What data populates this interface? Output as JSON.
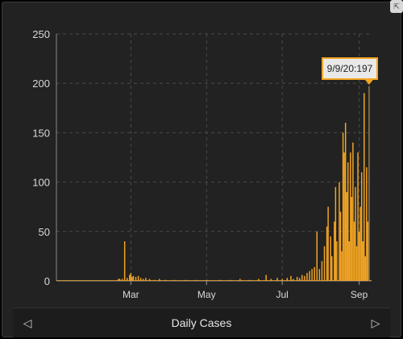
{
  "window": {
    "expand_icon": "expand-icon"
  },
  "footer": {
    "title": "Daily Cases",
    "prev_icon": "triangle-left-icon",
    "next_icon": "triangle-right-icon"
  },
  "tooltip": {
    "text": "9/9/20:197"
  },
  "colors": {
    "bar": "#f5a623",
    "background": "#222222",
    "grid": "#4a4a4a",
    "text": "#d9d9d9"
  },
  "chart_data": {
    "type": "bar",
    "title": "Daily Cases",
    "xlabel": "",
    "ylabel": "",
    "ylim": [
      0,
      250
    ],
    "yticks": [
      0,
      50,
      100,
      150,
      200,
      250
    ],
    "xticks": [
      {
        "label": "Mar",
        "date": "2020-03-01"
      },
      {
        "label": "May",
        "date": "2020-05-01"
      },
      {
        "label": "Jul",
        "date": "2020-07-01"
      },
      {
        "label": "Sep",
        "date": "2020-09-01"
      }
    ],
    "xrange": [
      "2020-01-01",
      "2020-09-11"
    ],
    "grid": true,
    "highlight": {
      "date": "2020-09-09",
      "value": 197
    },
    "series": [
      {
        "values": [
          {
            "date": "2020-02-20",
            "value": 2
          },
          {
            "date": "2020-02-21",
            "value": 2
          },
          {
            "date": "2020-02-23",
            "value": 2
          },
          {
            "date": "2020-02-25",
            "value": 40
          },
          {
            "date": "2020-02-27",
            "value": 3
          },
          {
            "date": "2020-02-29",
            "value": 6
          },
          {
            "date": "2020-03-01",
            "value": 8
          },
          {
            "date": "2020-03-02",
            "value": 4
          },
          {
            "date": "2020-03-03",
            "value": 5
          },
          {
            "date": "2020-03-05",
            "value": 4
          },
          {
            "date": "2020-03-07",
            "value": 5
          },
          {
            "date": "2020-03-09",
            "value": 3
          },
          {
            "date": "2020-03-11",
            "value": 2
          },
          {
            "date": "2020-03-13",
            "value": 3
          },
          {
            "date": "2020-03-16",
            "value": 2
          },
          {
            "date": "2020-03-20",
            "value": 1
          },
          {
            "date": "2020-03-24",
            "value": 2
          },
          {
            "date": "2020-03-29",
            "value": 1
          },
          {
            "date": "2020-04-05",
            "value": 1
          },
          {
            "date": "2020-04-14",
            "value": 1
          },
          {
            "date": "2020-04-23",
            "value": 1
          },
          {
            "date": "2020-05-02",
            "value": 1
          },
          {
            "date": "2020-05-12",
            "value": 1
          },
          {
            "date": "2020-05-20",
            "value": 1
          },
          {
            "date": "2020-05-28",
            "value": 2
          },
          {
            "date": "2020-06-05",
            "value": 1
          },
          {
            "date": "2020-06-12",
            "value": 2
          },
          {
            "date": "2020-06-18",
            "value": 6
          },
          {
            "date": "2020-06-22",
            "value": 2
          },
          {
            "date": "2020-06-27",
            "value": 3
          },
          {
            "date": "2020-07-01",
            "value": 2
          },
          {
            "date": "2020-07-05",
            "value": 3
          },
          {
            "date": "2020-07-08",
            "value": 5
          },
          {
            "date": "2020-07-10",
            "value": 2
          },
          {
            "date": "2020-07-13",
            "value": 4
          },
          {
            "date": "2020-07-15",
            "value": 3
          },
          {
            "date": "2020-07-17",
            "value": 6
          },
          {
            "date": "2020-07-19",
            "value": 5
          },
          {
            "date": "2020-07-21",
            "value": 8
          },
          {
            "date": "2020-07-23",
            "value": 10
          },
          {
            "date": "2020-07-25",
            "value": 12
          },
          {
            "date": "2020-07-27",
            "value": 14
          },
          {
            "date": "2020-07-29",
            "value": 50
          },
          {
            "date": "2020-07-31",
            "value": 12
          },
          {
            "date": "2020-08-02",
            "value": 20
          },
          {
            "date": "2020-08-04",
            "value": 35
          },
          {
            "date": "2020-08-06",
            "value": 55
          },
          {
            "date": "2020-08-07",
            "value": 75
          },
          {
            "date": "2020-08-09",
            "value": 45
          },
          {
            "date": "2020-08-10",
            "value": 25
          },
          {
            "date": "2020-08-12",
            "value": 60
          },
          {
            "date": "2020-08-13",
            "value": 95
          },
          {
            "date": "2020-08-14",
            "value": 40
          },
          {
            "date": "2020-08-16",
            "value": 100
          },
          {
            "date": "2020-08-17",
            "value": 70
          },
          {
            "date": "2020-08-18",
            "value": 30
          },
          {
            "date": "2020-08-19",
            "value": 150
          },
          {
            "date": "2020-08-20",
            "value": 130
          },
          {
            "date": "2020-08-21",
            "value": 160
          },
          {
            "date": "2020-08-22",
            "value": 90
          },
          {
            "date": "2020-08-23",
            "value": 120
          },
          {
            "date": "2020-08-24",
            "value": 40
          },
          {
            "date": "2020-08-25",
            "value": 130
          },
          {
            "date": "2020-08-26",
            "value": 85
          },
          {
            "date": "2020-08-27",
            "value": 140
          },
          {
            "date": "2020-08-28",
            "value": 60
          },
          {
            "date": "2020-08-29",
            "value": 95
          },
          {
            "date": "2020-08-30",
            "value": 35
          },
          {
            "date": "2020-08-31",
            "value": 130
          },
          {
            "date": "2020-09-01",
            "value": 50
          },
          {
            "date": "2020-09-02",
            "value": 75
          },
          {
            "date": "2020-09-03",
            "value": 110
          },
          {
            "date": "2020-09-04",
            "value": 40
          },
          {
            "date": "2020-09-05",
            "value": 190
          },
          {
            "date": "2020-09-06",
            "value": 25
          },
          {
            "date": "2020-09-07",
            "value": 115
          },
          {
            "date": "2020-09-08",
            "value": 60
          },
          {
            "date": "2020-09-09",
            "value": 197
          }
        ]
      }
    ]
  }
}
